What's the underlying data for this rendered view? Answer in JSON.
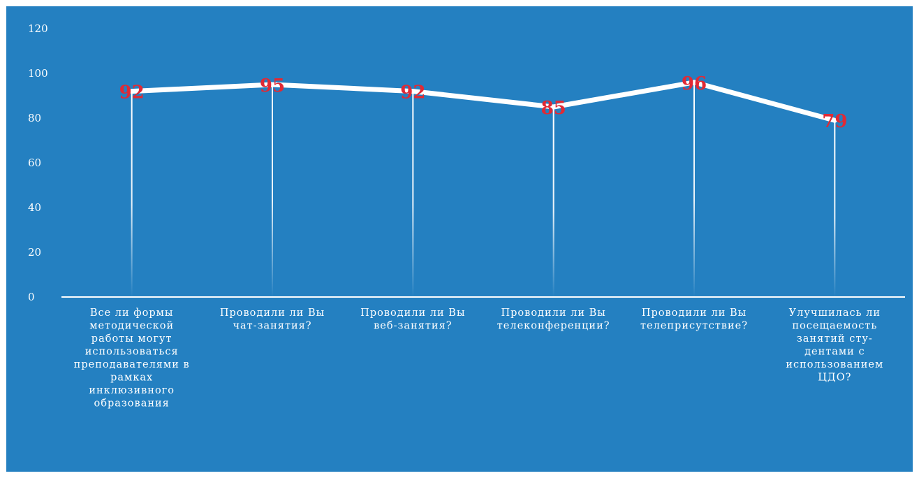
{
  "chart_data": {
    "type": "line",
    "title": "",
    "xlabel": "",
    "ylabel": "",
    "ylim": [
      0,
      120
    ],
    "yticks": [
      0,
      20,
      40,
      60,
      80,
      100,
      120
    ],
    "grid": false,
    "legend": "none",
    "categories": [
      [
        "Все ли формы",
        "методической",
        "работы могут",
        "использоваться",
        "преподавателями в",
        "рамках",
        "инклюзивного",
        "образования"
      ],
      [
        "Проводили ли Вы",
        "чат-занятия?"
      ],
      [
        "Проводили ли Вы",
        "веб-занятия?"
      ],
      [
        "Проводили ли Вы",
        "телеконференции?"
      ],
      [
        "Проводили ли Вы",
        "телеприсутствие?"
      ],
      [
        "Улучшилась ли",
        "посещаемость",
        "занятий сту-",
        "дентами с",
        "использованием",
        "ЦДО?"
      ]
    ],
    "series": [
      {
        "values": [
          92,
          95,
          92,
          85,
          96,
          79
        ],
        "data_labels": [
          "92",
          "95",
          "92",
          "85",
          "96",
          "79"
        ],
        "color": "#ffffff"
      }
    ],
    "colors": {
      "background": "#2480c1",
      "line": "#ffffff",
      "data_label": "#e02a35",
      "axis": "#ffffff"
    }
  }
}
